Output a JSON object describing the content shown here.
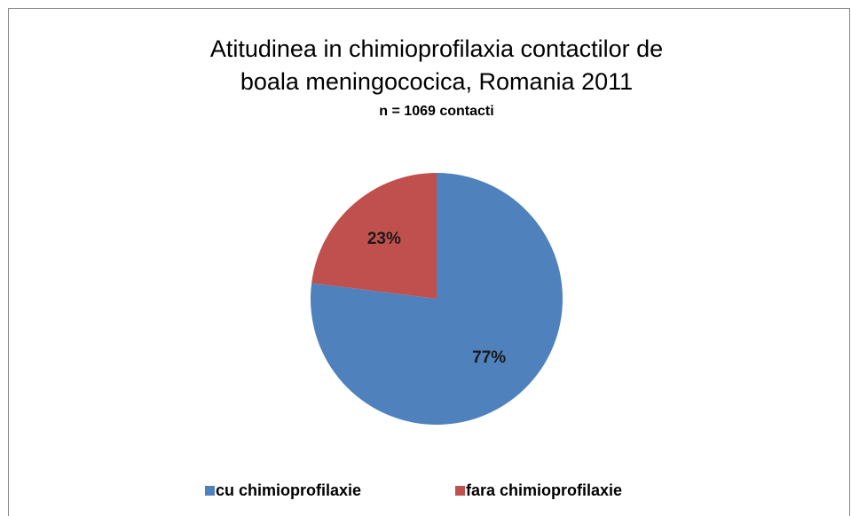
{
  "chart_data": {
    "type": "pie",
    "title": [
      "Atitudinea in chimioprofilaxia contactilor de",
      "boala meningococica, Romania 2011"
    ],
    "subtitle": "n = 1069 contacti",
    "categories": [
      "cu chimioprofilaxie",
      "fara chimioprofilaxie"
    ],
    "values": [
      77,
      23
    ],
    "value_labels": [
      "77%",
      "23%"
    ],
    "colors": [
      "#4f81bd",
      "#c0504d"
    ],
    "legend": "bottom"
  }
}
